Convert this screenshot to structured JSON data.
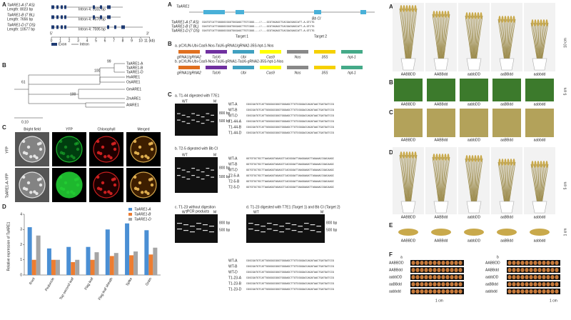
{
  "left_a": {
    "letter": "A",
    "genes": [
      {
        "name": "TaARE1-A (7 AS)",
        "length": "Length: 8023 bp",
        "intron": "Intron 4: 5182 bp"
      },
      {
        "name": "TaARE1-B (7 BL)",
        "length": "Length: 7656 bp",
        "intron": "Intron 4: 4576 bp"
      },
      {
        "name": "TaARE1-D (7 DS)",
        "length": "Length: 10577 bp",
        "intron": "Intron 4: 7595 bp"
      }
    ],
    "end5": "5'",
    "end3": "3'",
    "scale": [
      "0",
      "1",
      "2",
      "3",
      "4",
      "5",
      "6",
      "7",
      "8",
      "9",
      "10",
      "11 (kb)"
    ],
    "legend": [
      "Exon",
      "Intron"
    ]
  },
  "left_b": {
    "letter": "B",
    "taxa": [
      "TaARE1-A",
      "TaARE1-B",
      "TaARE1-D",
      "HvARE1",
      "OsARE1",
      "GmARE1",
      "ZmARE1",
      "AtARE1"
    ],
    "bootstrap": [
      "99",
      "100",
      "61",
      "100"
    ],
    "scale": "0.10"
  },
  "left_c": {
    "letter": "C",
    "columns": [
      "Bright field",
      "YFP",
      "Chlorophyll",
      "Merged"
    ],
    "rows": [
      "YFP",
      "TaARE1-A-YFP"
    ]
  },
  "left_d": {
    "letter": "D"
  },
  "chart_data": {
    "type": "bar",
    "ylabel": "Relative expression of TaARE1",
    "categories": [
      "Root",
      "Peduncle",
      "Top second leaf",
      "Flag leaf",
      "Flag leaf sheath",
      "Spike",
      "Grain"
    ],
    "series": [
      {
        "name": "TaARE1-A",
        "color": "#4a8fd4",
        "values": [
          3.15,
          1.75,
          1.85,
          1.85,
          3.0,
          3.4,
          2.95
        ]
      },
      {
        "name": "TaARE1-B",
        "color": "#ed7d31",
        "values": [
          1.0,
          1.0,
          0.85,
          1.0,
          1.25,
          1.3,
          1.35
        ]
      },
      {
        "name": "TaARE1-D",
        "color": "#a5a5a5",
        "values": [
          2.6,
          1.0,
          1.0,
          1.5,
          1.45,
          1.55,
          1.8
        ]
      }
    ],
    "ylim": [
      0,
      4
    ],
    "yticks": [
      0,
      1,
      2,
      3,
      4
    ],
    "legend": "top-right"
  },
  "mid_a": {
    "letter": "A",
    "gene": "TaARE1",
    "seqs": [
      {
        "name": "TaARE1-A (7 AS)",
        "seq": "CGATGTCATTGGGGGCGGGTGGGAGCTTGTCGGG---//---GCGTAGAGCTCACGACGAGCATT-A-GTCTG"
      },
      {
        "name": "TaARE1-B (7 BL)",
        "seq": "CGATGTCATTGGGGGCGGGTGGGAGCTTGTCGGG---//---GCGTAGAGCTCACGACGAGCATT-A-GTCTG"
      },
      {
        "name": "TaARE1-D (7 DS)",
        "seq": "CGATGTCATTGGGGGCGGGTGGGAGCTTGTCGGG---//---GCGTAGAGCTCACGACGAGCATT-A-GTCTG"
      }
    ],
    "targets": [
      "Target 1",
      "Target 2"
    ],
    "site": "Bb CI"
  },
  "mid_b": {
    "letter": "B",
    "vectors": [
      "a. pCXUN-Ubi-Cas9-Nos-TaU6-gRNA1/gRNA2-35S-hpt-1-Nos",
      "b. pCXUN-Ubi-Cas9-Nos-TaU6-gRNA1-TaU6-gRNA2-35S-hpt-1-Nos"
    ],
    "parts": [
      "gRNA1/gRNA2",
      "TaU6",
      "Ubi",
      "Cas9",
      "Nos",
      "35S",
      "hpt-1"
    ]
  },
  "mid_c": {
    "letter": "C",
    "gels": [
      "a. T1-44 digested with T7E1",
      "b. T2-5 digested with Bb CI",
      "c. T1-23  without digestion",
      "d. T1-23 digested with T7E1 (Target 1) and Bb CI (Target 2)"
    ],
    "pcr": "PCR products",
    "wt": "WT",
    "marker": "M",
    "bp1": "800 bp",
    "bp2": "500 bp",
    "rows_a": [
      "WT-A",
      "WT-B",
      "WT-D",
      "T1-44-A",
      "T1-44-B",
      "T1-44-D"
    ],
    "rows_b": [
      "WT-A",
      "WT-B",
      "WT-D",
      "T2-5-A",
      "T2-5-B",
      "T2-5-D"
    ],
    "rows_d": [
      "WT-A",
      "WT-B",
      "WT-D",
      "T1-23-A",
      "T1-23-B",
      "T1-23-D"
    ],
    "seq": "CGGCGATGTCATTGGGGGCGGGTGGGAGCTTGTCGGGACCAGATAACTGATGATCCG",
    "seq2": "GGTGTGCTGCTTAAGAGGTAGAGCTCACGGGATTAAGGAGATTAGAAACCGACAAGC"
  },
  "right": {
    "letters": [
      "A",
      "B",
      "C",
      "D",
      "E",
      "F"
    ],
    "genotypes": [
      "AABBDD",
      "AABBdd",
      "aabbDD",
      "aaBBdd",
      "aabbdd"
    ],
    "scales": [
      "10 cm",
      "5 cm",
      "5 cm",
      "1 cm",
      "1 cm"
    ],
    "sub": [
      "a",
      "b"
    ]
  }
}
